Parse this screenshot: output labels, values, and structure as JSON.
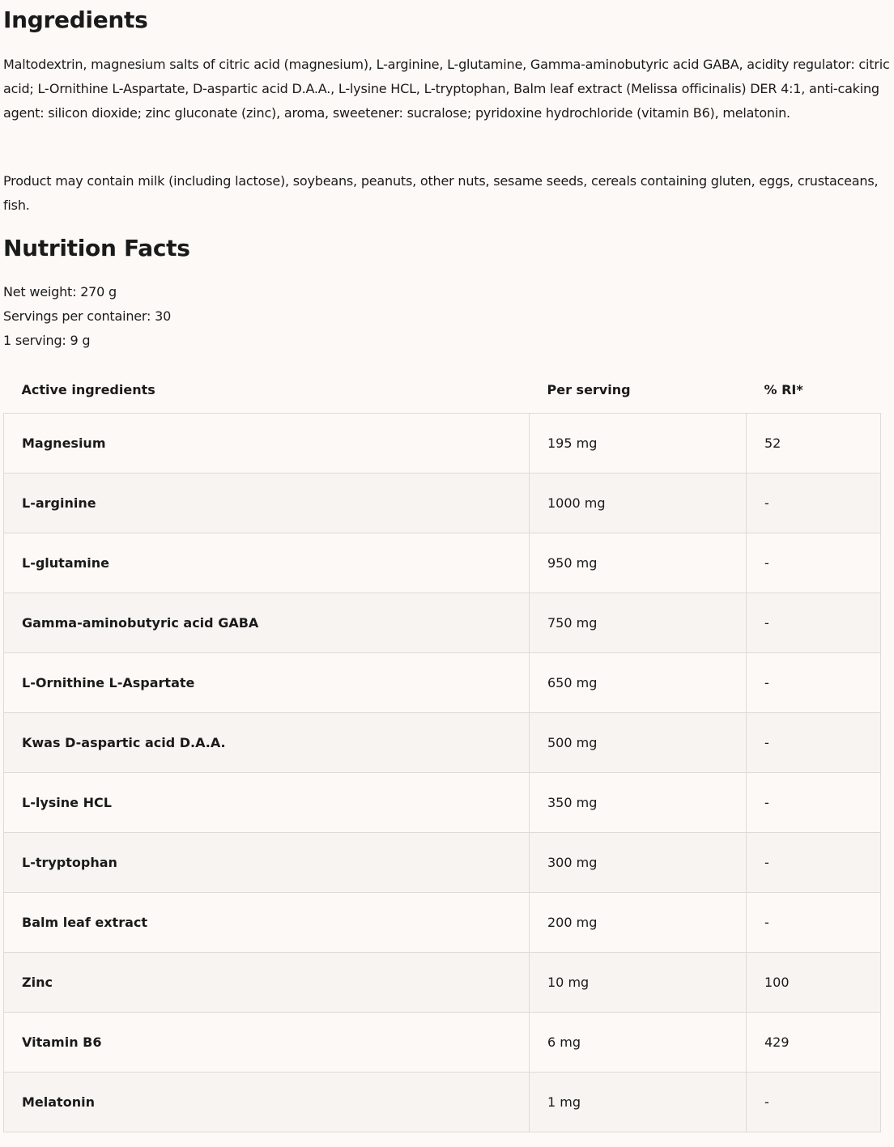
{
  "ingredients": {
    "title": "Ingredients",
    "text": "Maltodextrin, magnesium salts of citric acid (magnesium), L-arginine, L-glutamine, Gamma-aminobutyric acid GABA, acidity regulator: citric acid; L-Ornithine L-Aspartate, D-aspartic acid D.A.A., L-lysine HCL, L-tryptophan, Balm leaf extract (Melissa officinalis) DER 4:1, anti-caking agent: silicon dioxide; zinc gluconate (zinc), aroma, sweetener: sucralose; pyridoxine hydrochloride (vitamin B6), melatonin.",
    "allergens": "Product may contain milk (including lactose), soybeans, peanuts, other nuts, sesame seeds, cereals containing gluten, eggs, crustaceans, fish."
  },
  "nutrition": {
    "title": "Nutrition Facts",
    "net_weight": "Net weight: 270 g",
    "servings": "Servings per container: 30",
    "serving_size": "1 serving: 9 g",
    "headers": [
      "Active ingredients",
      "Per serving",
      "% RI*"
    ],
    "rows": [
      {
        "name": "Magnesium",
        "per_serving": "195 mg",
        "ri": "52"
      },
      {
        "name": "L-arginine",
        "per_serving": "1000 mg",
        "ri": "-"
      },
      {
        "name": "L-glutamine",
        "per_serving": "950 mg",
        "ri": "-"
      },
      {
        "name": "Gamma-aminobutyric acid GABA",
        "per_serving": "750 mg",
        "ri": "-"
      },
      {
        "name": "L-Ornithine L-Aspartate",
        "per_serving": "650 mg",
        "ri": "-"
      },
      {
        "name": "Kwas D-aspartic acid D.A.A.",
        "per_serving": "500 mg",
        "ri": "-"
      },
      {
        "name": "L-lysine HCL",
        "per_serving": "350 mg",
        "ri": "-"
      },
      {
        "name": "L-tryptophan",
        "per_serving": "300 mg",
        "ri": "-"
      },
      {
        "name": "Balm leaf extract",
        "per_serving": "200 mg",
        "ri": "-"
      },
      {
        "name": "Zinc",
        "per_serving": "10 mg",
        "ri": "100"
      },
      {
        "name": "Vitamin B6",
        "per_serving": "6 mg",
        "ri": "429"
      },
      {
        "name": "Melatonin",
        "per_serving": "1 mg",
        "ri": "-"
      }
    ]
  }
}
